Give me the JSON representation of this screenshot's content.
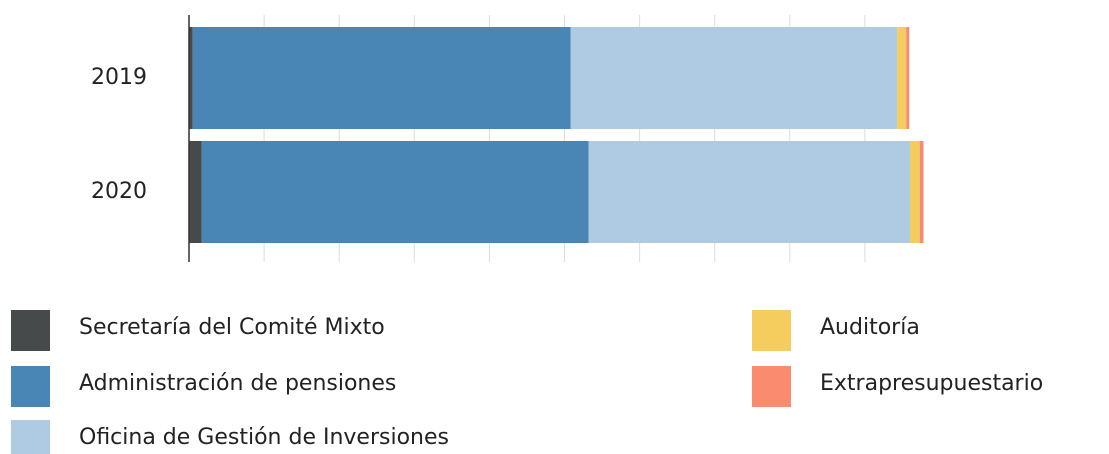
{
  "chart_data": {
    "type": "stacked-barh",
    "categories": [
      "2019",
      "2020"
    ],
    "series": [
      {
        "name": "Secretaría del Comité Mixto",
        "color": "#464a4b",
        "values": [
          0.5,
          1.7
        ]
      },
      {
        "name": "Administración de pensiones",
        "color": "#4a86b5",
        "values": [
          50.3,
          51.5
        ]
      },
      {
        "name": "Oficina de Gestión de Inversiones",
        "color": "#aecbe3",
        "values": [
          43.5,
          42.8
        ]
      },
      {
        "name": "Auditoría",
        "color": "#f5cd5f",
        "values": [
          1.2,
          1.3
        ]
      },
      {
        "name": "Extrapresupuestario",
        "color": "#fb8b6f",
        "values": [
          0.4,
          0.5
        ]
      }
    ],
    "xlim": [
      0,
      100
    ],
    "xticks": [
      0,
      10,
      20,
      30,
      40,
      50,
      60,
      70,
      80,
      90
    ],
    "grid": true
  }
}
